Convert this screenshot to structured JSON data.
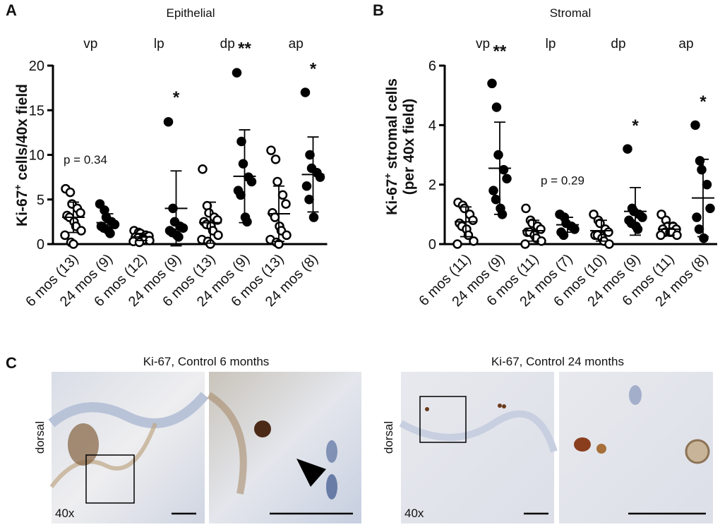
{
  "chart_data": [
    {
      "type": "strip",
      "panel": "A",
      "title": "Epithelial",
      "ylabel": {
        "main": "Ki-67",
        "sup": "+",
        "rest": " cells/40x field"
      },
      "groups": [
        "vp",
        "lp",
        "dp",
        "ap"
      ],
      "categories": [
        "6 mos (13)",
        "24 mos (9)",
        "6 mos (12)",
        "24 mos (9)",
        "6 mos (13)",
        "24 mos (9)",
        "6 mos (13)",
        "24 mos (8)"
      ],
      "markers": [
        "open",
        "filled",
        "open",
        "filled",
        "open",
        "filled",
        "open",
        "filled"
      ],
      "color": "#000000",
      "values": [
        [
          6.2,
          5.8,
          4.5,
          4,
          3.5,
          3.2,
          3,
          2.5,
          2,
          1.5,
          1,
          0.2,
          0
        ],
        [
          4.5,
          3.8,
          3,
          2.5,
          2.2,
          2,
          1.8,
          1.5,
          1.2
        ],
        [
          1.5,
          1.3,
          1.2,
          1,
          0.9,
          0.8,
          0.7,
          0.6,
          0.5,
          0.4,
          0.3,
          0.2
        ],
        [
          13.7,
          4,
          2.5,
          2,
          1.8,
          1.5,
          1.3,
          1,
          0.8
        ],
        [
          8.4,
          4.3,
          3.5,
          3,
          2.7,
          2.5,
          2.2,
          2,
          1.5,
          1,
          0.5,
          0.3,
          0
        ],
        [
          19.2,
          11.5,
          9,
          7.5,
          7,
          6,
          5.5,
          3,
          2.5
        ],
        [
          10.5,
          9.5,
          7,
          5.5,
          4.5,
          3.5,
          3,
          2,
          1.5,
          1,
          0.5,
          0.2,
          0
        ],
        [
          17,
          10,
          8.5,
          8,
          7.5,
          6.5,
          5,
          3
        ]
      ],
      "mean": [
        3,
        2.4,
        0.8,
        4,
        2.4,
        7.6,
        3.4,
        7.8
      ],
      "sd": [
        1.7,
        1,
        0.4,
        4.2,
        2.3,
        5.2,
        3.1,
        4.2
      ],
      "annotations": [
        {
          "text": "p = 0.34",
          "category": 0,
          "y": 9
        },
        {
          "text": "*",
          "category": 3,
          "y": 15.8
        },
        {
          "text": "**",
          "category": 5,
          "y": 21.3
        },
        {
          "text": "*",
          "category": 7,
          "y": 19
        }
      ],
      "ylim": [
        0,
        20
      ],
      "yticks": [
        0,
        5,
        10,
        15,
        20
      ]
    },
    {
      "type": "strip",
      "panel": "B",
      "title": "Stromal",
      "ylabel": {
        "main": "Ki-67",
        "sup": "+",
        "rest": " stromal cells",
        "line2": "(per 40x field)"
      },
      "groups": [
        "vp",
        "lp",
        "dp",
        "ap"
      ],
      "categories": [
        "6 mos (11)",
        "24 mos (9)",
        "6 mos (11)",
        "24 mos (7)",
        "6 mos (10)",
        "24 mos (9)",
        "6 mos (11)",
        "24 mos (8)"
      ],
      "markers": [
        "open",
        "filled",
        "open",
        "filled",
        "open",
        "filled",
        "open",
        "filled"
      ],
      "color": "#000000",
      "values": [
        [
          1.4,
          1.3,
          1.2,
          1,
          0.8,
          0.7,
          0.6,
          0.5,
          0.3,
          0.1,
          0
        ],
        [
          5.4,
          4.6,
          3,
          2.5,
          2.2,
          1.8,
          1.5,
          1.2,
          1
        ],
        [
          1.2,
          0.8,
          0.7,
          0.6,
          0.5,
          0.4,
          0.4,
          0.3,
          0.2,
          0.1,
          0
        ],
        [
          1,
          0.9,
          0.7,
          0.6,
          0.5,
          0.4,
          0.3
        ],
        [
          1,
          0.8,
          0.7,
          0.5,
          0.4,
          0.3,
          0.3,
          0.2,
          0.1,
          0
        ],
        [
          3.2,
          1.2,
          1.1,
          1,
          0.9,
          0.8,
          0.7,
          0.6,
          0.5
        ],
        [
          1,
          0.8,
          0.6,
          0.6,
          0.5,
          0.5,
          0.4,
          0.4,
          0.4,
          0.3,
          0.3
        ],
        [
          4,
          2.8,
          2.5,
          2,
          1.2,
          0.9,
          0.5,
          0.2
        ]
      ],
      "mean": [
        0.75,
        2.55,
        0.45,
        0.65,
        0.45,
        1.1,
        0.5,
        1.55
      ],
      "sd": [
        0.5,
        1.55,
        0.35,
        0.25,
        0.35,
        0.8,
        0.2,
        1.3
      ],
      "annotations": [
        {
          "text": "**",
          "category": 1,
          "y": 6.3
        },
        {
          "text": "p = 0.29",
          "category": 2.5,
          "y": 2
        },
        {
          "text": "*",
          "category": 5,
          "y": 3.8
        },
        {
          "text": "*",
          "category": 7,
          "y": 4.6
        }
      ],
      "ylim": [
        0,
        6
      ],
      "yticks": [
        0,
        2,
        4,
        6
      ]
    }
  ],
  "panel_c": {
    "label": "C",
    "images": [
      {
        "title": "Ki-67, Control 6 months",
        "side": "dorsal",
        "magnification": "40x"
      },
      {
        "title": "Ki-67, Control 24 months",
        "side": "dorsal",
        "magnification": "40x"
      }
    ]
  }
}
